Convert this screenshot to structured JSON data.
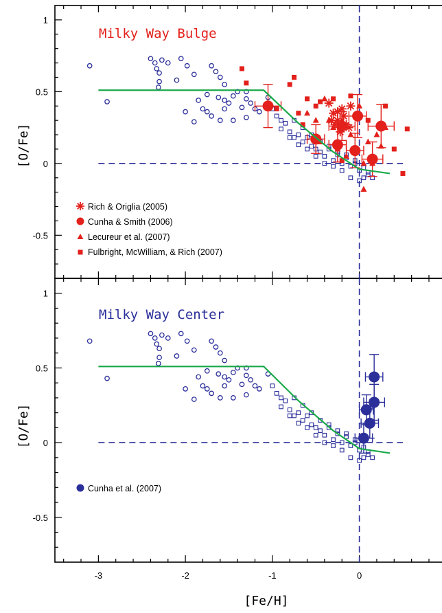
{
  "colors": {
    "blue": "#2b2f9a",
    "red": "#e3201b",
    "green": "#1aaa4a",
    "axis": "#000000"
  },
  "xlabel": "[Fe/H]",
  "chart_data": [
    {
      "type": "scatter",
      "title": "Milky Way Bulge",
      "title_color": "#e3201b",
      "xlabel": "",
      "ylabel": "[O/Fe]",
      "xlim": [
        -3.5,
        0.95
      ],
      "ylim": [
        -0.8,
        1.1
      ],
      "x_ticks": [
        -3,
        -2,
        -1,
        0
      ],
      "x_tick_labels": [],
      "y_ticks": [
        1,
        0.5,
        0,
        -0.5
      ],
      "y_tick_labels": [
        "1",
        "0.5",
        "0",
        "-0.5"
      ],
      "grid": false,
      "legend_position": "lower-left",
      "reference_lines": [
        {
          "orientation": "horizontal",
          "y": 0,
          "x_range": [
            -3.0,
            0.5
          ],
          "style": "dashed",
          "color": "#2b2f9a"
        },
        {
          "orientation": "vertical",
          "x": 0,
          "style": "dashed",
          "color": "#2b2f9a"
        }
      ],
      "model_line": {
        "color": "#1aaa4a",
        "x": [
          -3.0,
          -1.1,
          -0.7,
          -0.3,
          0.0,
          0.35
        ],
        "y": [
          0.51,
          0.51,
          0.28,
          0.08,
          -0.04,
          -0.07
        ]
      },
      "series": [
        {
          "name": "",
          "marker": "open-circle",
          "color": "#2b2f9a",
          "x": [
            -3.1,
            -2.9,
            -2.4,
            -2.35,
            -2.33,
            -2.3,
            -2.27,
            -2.31,
            -2.2,
            -2.1,
            -2.05,
            -1.98,
            -1.9,
            -1.85,
            -1.8,
            -1.75,
            -1.7,
            -1.65,
            -1.6,
            -1.55,
            -1.5,
            -1.45,
            -1.4,
            -1.35,
            -1.3,
            -1.25,
            -1.2,
            -1.15,
            -1.3,
            -1.6,
            -2.0,
            -1.9,
            -1.7,
            -1.55,
            -1.45,
            -2.3,
            -1.62,
            -1.55,
            -1.75,
            -1.05,
            -1.3
          ],
          "y": [
            0.68,
            0.43,
            0.73,
            0.7,
            0.66,
            0.63,
            0.72,
            0.53,
            0.7,
            0.58,
            0.73,
            0.68,
            0.62,
            0.44,
            0.38,
            0.36,
            0.68,
            0.64,
            0.6,
            0.44,
            0.42,
            0.47,
            0.5,
            0.39,
            0.45,
            0.42,
            0.38,
            0.36,
            0.32,
            0.3,
            0.36,
            0.29,
            0.33,
            0.38,
            0.3,
            0.57,
            0.46,
            0.55,
            0.48,
            0.46,
            0.5
          ]
        },
        {
          "name": "",
          "marker": "open-square",
          "color": "#2b2f9a",
          "x": [
            -1.0,
            -0.95,
            -0.9,
            -0.85,
            -0.8,
            -0.75,
            -0.7,
            -0.65,
            -0.6,
            -0.55,
            -0.5,
            -0.45,
            -0.4,
            -0.35,
            -0.3,
            -0.25,
            -0.2,
            -0.15,
            -0.1,
            -0.05,
            0.0,
            0.05,
            0.1,
            0.15,
            -0.9,
            -0.8,
            -0.7,
            -0.6,
            -0.5,
            -0.4,
            -0.3,
            -0.2,
            -0.1,
            0.0,
            0.1,
            -0.45,
            -0.35,
            -0.25,
            -0.15,
            -0.05,
            0.05,
            -0.55,
            -0.65,
            -0.75
          ],
          "y": [
            0.38,
            0.33,
            0.3,
            0.28,
            0.22,
            0.18,
            0.2,
            0.15,
            0.18,
            0.12,
            0.1,
            0.08,
            0.05,
            0.1,
            0.02,
            0.06,
            0.0,
            0.04,
            -0.02,
            0.0,
            -0.05,
            -0.03,
            -0.06,
            -0.1,
            0.24,
            0.18,
            0.13,
            0.1,
            0.05,
            0.0,
            -0.02,
            -0.05,
            -0.1,
            -0.12,
            -0.08,
            0.15,
            0.12,
            0.08,
            0.06,
            0.02,
            -0.1,
            0.2,
            0.25,
            0.3
          ]
        },
        {
          "name": "Rich & Origlia (2005)",
          "marker": "asterisk",
          "color": "#e3201b",
          "x": [
            -0.35,
            -0.3,
            -0.25,
            -0.2,
            -0.15,
            -0.1,
            -0.22,
            -0.28,
            -0.18,
            -0.12,
            -0.32,
            -0.25
          ],
          "y": [
            0.42,
            0.35,
            0.3,
            0.38,
            0.27,
            0.4,
            0.22,
            0.27,
            0.33,
            0.25,
            0.3,
            0.36
          ]
        },
        {
          "name": "Cunha & Smith (2006)",
          "marker": "filled-circle",
          "color": "#e3201b",
          "x": [
            -1.05,
            -0.5,
            -0.25,
            -0.2,
            -0.05,
            -0.02,
            0.25,
            0.15
          ],
          "y": [
            0.4,
            0.17,
            0.13,
            0.26,
            0.09,
            0.33,
            0.26,
            0.03
          ],
          "yerr": [
            0.15,
            0.1,
            0.12,
            0.1,
            0.12,
            0.15,
            0.15,
            0.12
          ],
          "xerr": [
            0.15,
            0.1,
            0.1,
            0.15,
            0.1,
            0.1,
            0.15,
            0.12
          ]
        },
        {
          "name": "Lecureur et al. (2007)",
          "marker": "filled-triangle",
          "color": "#e3201b",
          "x": [
            -0.6,
            -0.5,
            -0.4,
            -0.3,
            -0.2,
            -0.1,
            0.0,
            0.1,
            0.2,
            0.3,
            -0.45,
            -0.35,
            -0.15,
            0.05,
            0.15,
            0.25,
            0.05,
            -0.25
          ],
          "y": [
            0.35,
            0.3,
            0.45,
            0.25,
            0.3,
            0.2,
            0.4,
            0.15,
            0.2,
            0.25,
            0.15,
            0.3,
            0.05,
            0.0,
            0.0,
            0.12,
            -0.18,
            0.1
          ]
        },
        {
          "name": "Fulbright, McWilliam, & Rich (2007)",
          "marker": "filled-square",
          "color": "#e3201b",
          "x": [
            -1.35,
            -1.3,
            -0.95,
            -0.8,
            -0.75,
            -0.6,
            -0.45,
            -0.7,
            -0.65,
            -0.5,
            -0.3,
            -0.1,
            0.1,
            0.3,
            0.55,
            0.5,
            -0.2,
            0.4
          ],
          "y": [
            0.66,
            0.56,
            0.38,
            0.55,
            0.6,
            0.45,
            0.43,
            0.35,
            0.27,
            0.4,
            0.45,
            0.47,
            0.3,
            0.4,
            0.24,
            -0.07,
            0.02,
            0.1
          ]
        }
      ]
    },
    {
      "type": "scatter",
      "title": "Milky Way Center",
      "title_color": "#2b2f9a",
      "xlabel": "[Fe/H]",
      "ylabel": "[O/Fe]",
      "xlim": [
        -3.5,
        0.95
      ],
      "ylim": [
        -0.8,
        1.1
      ],
      "x_ticks": [
        -3,
        -2,
        -1,
        0
      ],
      "x_tick_labels": [
        "-3",
        "-2",
        "-1",
        "0"
      ],
      "y_ticks": [
        1,
        0.5,
        0,
        -0.5
      ],
      "y_tick_labels": [
        "1",
        "0.5",
        "0",
        "-0.5"
      ],
      "grid": false,
      "legend_position": "lower-left",
      "reference_lines": [
        {
          "orientation": "horizontal",
          "y": 0,
          "x_range": [
            -3.0,
            0.5
          ],
          "style": "dashed",
          "color": "#2b2f9a"
        },
        {
          "orientation": "vertical",
          "x": 0,
          "style": "dashed",
          "color": "#2b2f9a"
        }
      ],
      "model_line": {
        "color": "#1aaa4a",
        "x": [
          -3.0,
          -1.1,
          -0.7,
          -0.3,
          0.0,
          0.35
        ],
        "y": [
          0.51,
          0.51,
          0.28,
          0.08,
          -0.04,
          -0.07
        ]
      },
      "series": [
        {
          "name": "",
          "marker": "open-circle",
          "color": "#2b2f9a",
          "x": [
            -3.1,
            -2.9,
            -2.4,
            -2.35,
            -2.33,
            -2.3,
            -2.27,
            -2.31,
            -2.2,
            -2.1,
            -2.05,
            -1.98,
            -1.9,
            -1.85,
            -1.8,
            -1.75,
            -1.7,
            -1.65,
            -1.6,
            -1.55,
            -1.5,
            -1.45,
            -1.4,
            -1.35,
            -1.3,
            -1.25,
            -1.2,
            -1.15,
            -1.3,
            -1.6,
            -2.0,
            -1.9,
            -1.7,
            -1.55,
            -1.45,
            -2.3,
            -1.62,
            -1.55,
            -1.75,
            -1.05,
            -1.3
          ],
          "y": [
            0.68,
            0.43,
            0.73,
            0.7,
            0.66,
            0.63,
            0.72,
            0.53,
            0.7,
            0.58,
            0.73,
            0.68,
            0.62,
            0.44,
            0.38,
            0.36,
            0.68,
            0.64,
            0.6,
            0.44,
            0.42,
            0.47,
            0.5,
            0.39,
            0.45,
            0.42,
            0.38,
            0.36,
            0.32,
            0.3,
            0.36,
            0.29,
            0.33,
            0.38,
            0.3,
            0.57,
            0.46,
            0.55,
            0.48,
            0.46,
            0.5
          ]
        },
        {
          "name": "",
          "marker": "open-square",
          "color": "#2b2f9a",
          "x": [
            -1.0,
            -0.95,
            -0.9,
            -0.85,
            -0.8,
            -0.75,
            -0.7,
            -0.65,
            -0.6,
            -0.55,
            -0.5,
            -0.45,
            -0.4,
            -0.35,
            -0.3,
            -0.25,
            -0.2,
            -0.15,
            -0.1,
            -0.05,
            0.0,
            0.05,
            0.1,
            0.15,
            -0.9,
            -0.8,
            -0.7,
            -0.6,
            -0.5,
            -0.4,
            -0.3,
            -0.2,
            -0.1,
            0.0,
            0.1,
            -0.45,
            -0.35,
            -0.25,
            -0.15,
            -0.05,
            0.05,
            -0.55,
            -0.65,
            -0.75
          ],
          "y": [
            0.38,
            0.33,
            0.3,
            0.28,
            0.22,
            0.18,
            0.2,
            0.15,
            0.18,
            0.12,
            0.1,
            0.08,
            0.05,
            0.1,
            0.02,
            0.06,
            0.0,
            0.04,
            -0.02,
            0.0,
            -0.05,
            -0.03,
            -0.06,
            -0.1,
            0.24,
            0.18,
            0.13,
            0.1,
            0.05,
            0.0,
            -0.02,
            -0.05,
            -0.1,
            -0.12,
            -0.08,
            0.15,
            0.12,
            0.08,
            0.06,
            0.02,
            -0.1,
            0.2,
            0.25,
            0.3
          ]
        },
        {
          "name": "Cunha et al. (2007)",
          "marker": "filled-circle",
          "color": "#2b2f9a",
          "x": [
            0.05,
            0.17,
            0.08,
            0.17,
            0.12
          ],
          "y": [
            0.03,
            0.44,
            0.22,
            0.27,
            0.13
          ],
          "yerr": [
            0.1,
            0.15,
            0.1,
            0.12,
            0.1
          ],
          "xerr": [
            0.1,
            0.1,
            0.08,
            0.12,
            0.1
          ]
        }
      ]
    }
  ]
}
